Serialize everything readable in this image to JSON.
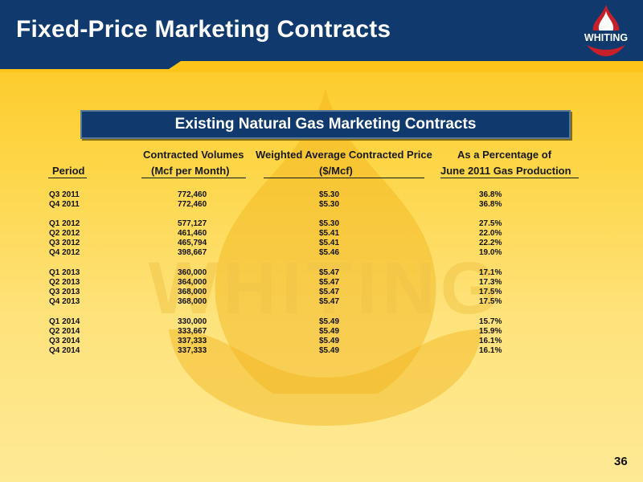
{
  "header": {
    "title": "Fixed-Price Marketing Contracts",
    "logo_text": "WHITING",
    "brand_color": "#103a6e",
    "accent_color": "#c8202a"
  },
  "watermark_text": "WHITING",
  "banner": {
    "text": "Existing Natural Gas Marketing Contracts"
  },
  "table": {
    "headers": {
      "period": "Period",
      "volumes_line1": "Contracted Volumes",
      "volumes_line2": "(Mcf per Month)",
      "price_line1": "Weighted Average Contracted Price",
      "price_line2": "($/Mcf)",
      "pct_line1": "As a Percentage of",
      "pct_line2": "June 2011 Gas Production"
    },
    "rows": [
      {
        "period": "Q3 2011",
        "volume": "772,460",
        "price": "$5.30",
        "pct": "36.8%"
      },
      {
        "period": "Q4 2011",
        "volume": "772,460",
        "price": "$5.30",
        "pct": "36.8%"
      },
      {
        "period": "Q1 2012",
        "volume": "577,127",
        "price": "$5.30",
        "pct": "27.5%"
      },
      {
        "period": "Q2 2012",
        "volume": "461,460",
        "price": "$5.41",
        "pct": "22.0%"
      },
      {
        "period": "Q3 2012",
        "volume": "465,794",
        "price": "$5.41",
        "pct": "22.2%"
      },
      {
        "period": "Q4 2012",
        "volume": "398,667",
        "price": "$5.46",
        "pct": "19.0%"
      },
      {
        "period": "Q1 2013",
        "volume": "360,000",
        "price": "$5.47",
        "pct": "17.1%"
      },
      {
        "period": "Q2 2013",
        "volume": "364,000",
        "price": "$5.47",
        "pct": "17.3%"
      },
      {
        "period": "Q3 2013",
        "volume": "368,000",
        "price": "$5.47",
        "pct": "17.5%"
      },
      {
        "period": "Q4 2013",
        "volume": "368,000",
        "price": "$5.47",
        "pct": "17.5%"
      },
      {
        "period": "Q1 2014",
        "volume": "330,000",
        "price": "$5.49",
        "pct": "15.7%"
      },
      {
        "period": "Q2 2014",
        "volume": "333,667",
        "price": "$5.49",
        "pct": "15.9%"
      },
      {
        "period": "Q3 2014",
        "volume": "337,333",
        "price": "$5.49",
        "pct": "16.1%"
      },
      {
        "period": "Q4 2014",
        "volume": "337,333",
        "price": "$5.49",
        "pct": "16.1%"
      }
    ]
  },
  "page_number": "36"
}
